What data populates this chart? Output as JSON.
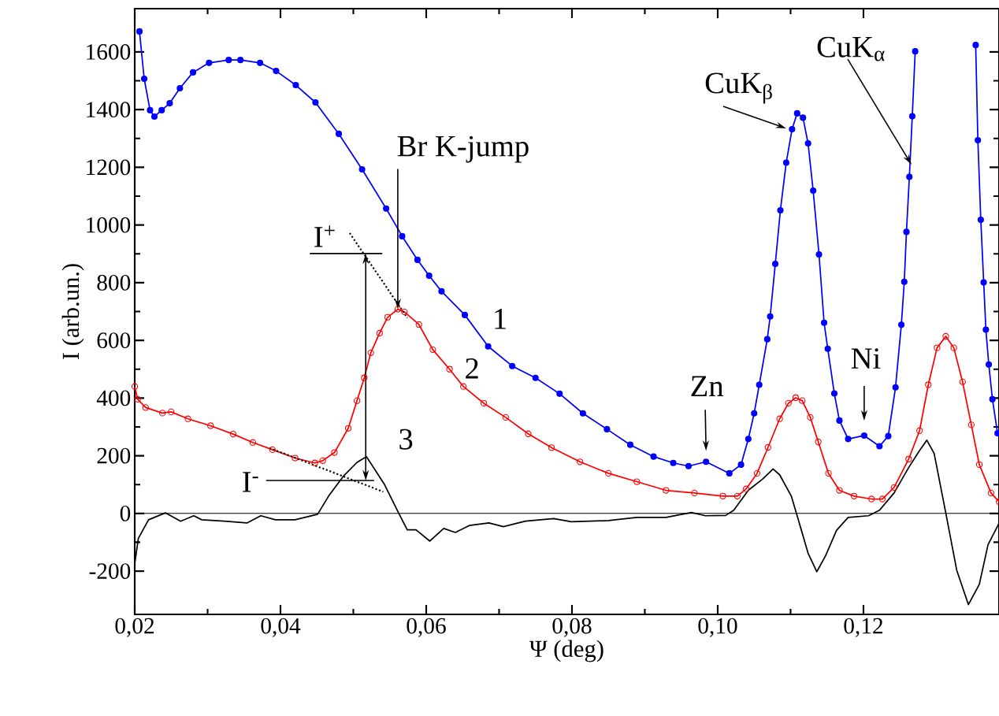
{
  "chart_data": {
    "type": "line",
    "xlabel": "Ψ (deg)",
    "ylabel": "I (arb.un.)",
    "xlim": [
      0.02,
      0.1386
    ],
    "ylim": [
      -350,
      1750
    ],
    "xticks": [
      {
        "value": 0.02,
        "label": "0,02"
      },
      {
        "value": 0.04,
        "label": "0,04"
      },
      {
        "value": 0.06,
        "label": "0,06"
      },
      {
        "value": 0.08,
        "label": "0,08"
      },
      {
        "value": 0.1,
        "label": "0,10"
      },
      {
        "value": 0.12,
        "label": "0,12"
      }
    ],
    "yticks": [
      -200,
      0,
      200,
      400,
      600,
      800,
      1000,
      1200,
      1400,
      1600
    ],
    "grid": false,
    "series": [
      {
        "name": "1",
        "color": "#0000ff",
        "marker": "circle",
        "line_style": "solid",
        "x": [
          0.02065,
          0.0213,
          0.0221,
          0.0227,
          0.0237,
          0.0248,
          0.0262,
          0.028,
          0.0302,
          0.0329,
          0.0345,
          0.0372,
          0.0394,
          0.0421,
          0.0448,
          0.048,
          0.0512,
          0.0545,
          0.0567,
          0.0588,
          0.0604,
          0.0621,
          0.0653,
          0.0685,
          0.0718,
          0.075,
          0.0783,
          0.0815,
          0.0848,
          0.088,
          0.0912,
          0.0939,
          0.096,
          0.0984,
          0.1016,
          0.1032,
          0.1042,
          0.105,
          0.1057,
          0.1068,
          0.1072,
          0.1079,
          0.1086,
          0.1094,
          0.1102,
          0.1109,
          0.1117,
          0.1124,
          0.1131,
          0.1139,
          0.1146,
          0.1151,
          0.116,
          0.1167,
          0.1179,
          0.1201,
          0.1222,
          0.1234,
          0.1244,
          0.1252,
          0.1256,
          0.1259,
          0.1263,
          0.1267,
          0.1271,
          0.1273,
          0.1313,
          0.1353,
          0.1354,
          0.1357,
          0.1361,
          0.1365,
          0.1368,
          0.1372,
          0.1377,
          0.1384
        ],
        "values": [
          1671,
          1507,
          1398,
          1376,
          1398,
          1422,
          1474,
          1529,
          1562,
          1572,
          1572,
          1562,
          1534,
          1485,
          1425,
          1316,
          1193,
          1057,
          961,
          879,
          824,
          770,
          688,
          579,
          511,
          470,
          415,
          347,
          292,
          238,
          197,
          175,
          164,
          179,
          139,
          169,
          258,
          347,
          446,
          604,
          683,
          865,
          1051,
          1216,
          1332,
          1387,
          1372,
          1283,
          1119,
          898,
          661,
          571,
          416,
          322,
          258,
          270,
          233,
          268,
          437,
          654,
          803,
          976,
          1167,
          1377,
          1602,
          null,
          null,
          null,
          1624,
          1294,
          1018,
          801,
          637,
          516,
          396,
          278
        ]
      },
      {
        "name": "2",
        "color": "#ff0000",
        "marker": "circle",
        "line_style": "solid",
        "x": [
          0.02,
          0.0204,
          0.0215,
          0.0238,
          0.025,
          0.0273,
          0.0304,
          0.0335,
          0.0362,
          0.0389,
          0.042,
          0.0447,
          0.0458,
          0.0474,
          0.0493,
          0.0505,
          0.0515,
          0.0524,
          0.0536,
          0.0547,
          0.0561,
          0.057,
          0.059,
          0.0609,
          0.0632,
          0.0651,
          0.0679,
          0.0709,
          0.074,
          0.0772,
          0.0811,
          0.085,
          0.0889,
          0.0929,
          0.0968,
          0.1007,
          0.1027,
          0.1039,
          0.1054,
          0.1069,
          0.1085,
          0.1097,
          0.1107,
          0.1116,
          0.1127,
          0.1138,
          0.1152,
          0.1167,
          0.1187,
          0.1211,
          0.1226,
          0.1242,
          0.1262,
          0.1277,
          0.1289,
          0.1301,
          0.1313,
          0.1324,
          0.1336,
          0.1348,
          0.1359,
          0.1375,
          0.1386
        ],
        "values": [
          440,
          396,
          367,
          348,
          352,
          328,
          304,
          275,
          246,
          221,
          192,
          175,
          183,
          211,
          295,
          391,
          470,
          557,
          625,
          680,
          708,
          699,
          655,
          568,
          500,
          440,
          382,
          333,
          276,
          228,
          179,
          139,
          110,
          80,
          71,
          60,
          60,
          85,
          139,
          229,
          328,
          382,
          401,
          391,
          333,
          248,
          139,
          80,
          60,
          50,
          50,
          90,
          188,
          287,
          446,
          574,
          614,
          574,
          456,
          307,
          169,
          71,
          41
        ]
      },
      {
        "name": "3",
        "color": "#000000",
        "marker": "none",
        "line_style": "solid",
        "x": [
          0.02,
          0.0205,
          0.0219,
          0.0242,
          0.0263,
          0.0281,
          0.0292,
          0.0323,
          0.0354,
          0.0373,
          0.0393,
          0.042,
          0.0451,
          0.0466,
          0.0486,
          0.0505,
          0.0518,
          0.0528,
          0.0543,
          0.0563,
          0.0574,
          0.0586,
          0.0605,
          0.0624,
          0.064,
          0.0659,
          0.0686,
          0.0706,
          0.0736,
          0.0775,
          0.0799,
          0.085,
          0.0889,
          0.0929,
          0.0964,
          0.0983,
          0.1011,
          0.1022,
          0.1042,
          0.1062,
          0.1076,
          0.1085,
          0.1101,
          0.1109,
          0.1124,
          0.1136,
          0.1148,
          0.1163,
          0.1179,
          0.1207,
          0.1222,
          0.1242,
          0.1262,
          0.1277,
          0.1287,
          0.1297,
          0.1313,
          0.1328,
          0.1344,
          0.1359,
          0.1371,
          0.1386
        ],
        "values": [
          -174,
          -86,
          -22,
          2,
          -27,
          -8,
          -22,
          -27,
          -33,
          -8,
          -22,
          -22,
          -3,
          60,
          128,
          177,
          197,
          158,
          99,
          -3,
          -57,
          -57,
          -96,
          -52,
          -66,
          -42,
          -33,
          -46,
          -27,
          -18,
          -29,
          -25,
          -14,
          -14,
          3,
          -8,
          -7,
          11,
          80,
          120,
          154,
          134,
          60,
          -8,
          -138,
          -202,
          -147,
          -59,
          -14,
          -8,
          11,
          71,
          159,
          218,
          254,
          208,
          1,
          -197,
          -316,
          -246,
          -108,
          -34
        ]
      },
      {
        "type": "line",
        "color": "#000000",
        "marker": "none",
        "line_style": "dotted",
        "x": [
          0.0495,
          0.0574
        ],
        "values": [
          972,
          678
        ]
      },
      {
        "type": "line",
        "color": "#000000",
        "marker": "none",
        "line_style": "dotted",
        "x": [
          0.0385,
          0.0541
        ],
        "values": [
          227,
          75
        ]
      }
    ],
    "ref_lines": [
      {
        "axis": "y",
        "value": 0,
        "color": "#000000"
      }
    ],
    "annotations": [
      {
        "text": "Br K-jump",
        "x": 0.0561,
        "y": 708
      },
      {
        "text": "CuK$_{β}$",
        "x": 0.1094,
        "y": 1335
      },
      {
        "text": "CuK$_{α}$",
        "x": 0.1266,
        "y": 1209
      },
      {
        "text": "Zn",
        "x": 0.0984,
        "y": 179
      },
      {
        "text": "Ni",
        "x": 0.1201,
        "y": 270
      },
      {
        "text": "I$^{+}$",
        "x": 0.0517,
        "y": 901
      },
      "I$^{-}$"
    ]
  }
}
